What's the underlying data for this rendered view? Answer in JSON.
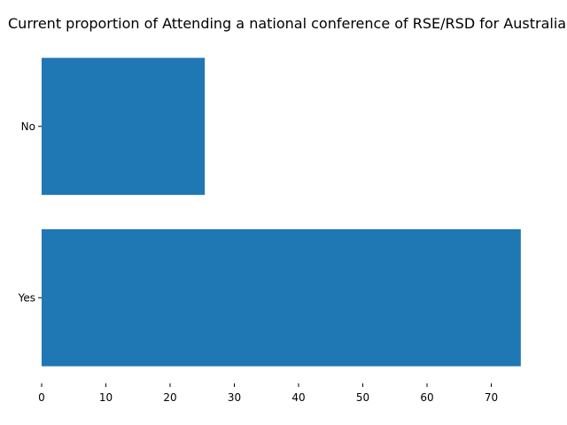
{
  "chart_data": {
    "type": "bar",
    "orientation": "horizontal",
    "title": "Current proportion of Attending a national conference of RSE/RSD for Australia",
    "categories": [
      "Yes",
      "No"
    ],
    "values": [
      74.6,
      25.4
    ],
    "xlabel": "",
    "ylabel": "",
    "xlim": [
      0,
      76
    ],
    "xticks": [
      0,
      10,
      20,
      30,
      40,
      50,
      60,
      70
    ],
    "bar_color": "#1f77b4",
    "grid": false,
    "legend": "none"
  }
}
